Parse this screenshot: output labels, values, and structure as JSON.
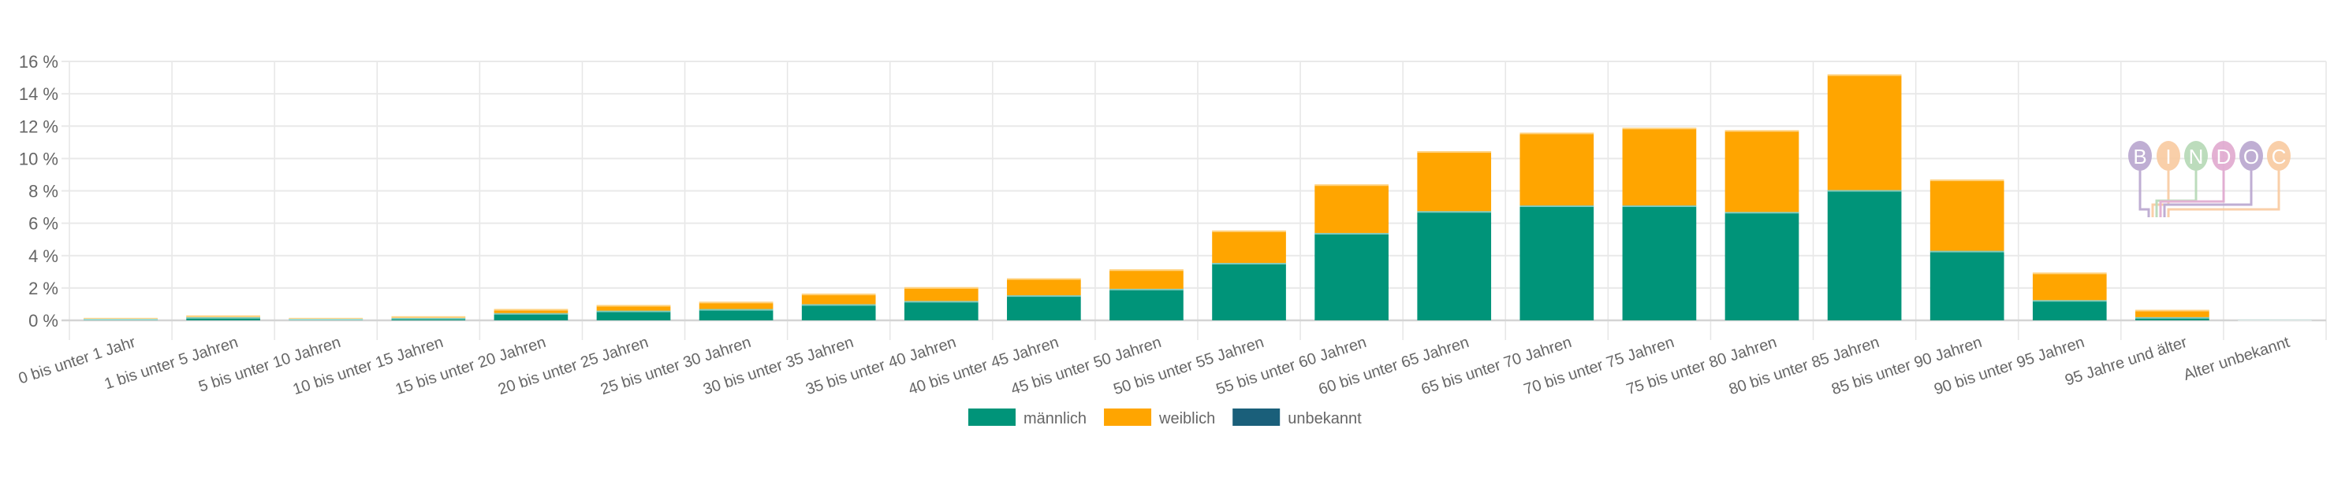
{
  "chart_data": {
    "type": "bar",
    "stacked": true,
    "title": "",
    "xlabel": "",
    "ylabel": "",
    "ylim": [
      0,
      16
    ],
    "y_ticks": [
      "0 %",
      "2 %",
      "4 %",
      "6 %",
      "8 %",
      "10 %",
      "12 %",
      "14 %",
      "16 %"
    ],
    "grid": true,
    "legend_position": "bottom",
    "categories": [
      "0 bis unter 1 Jahr",
      "1 bis unter 5 Jahren",
      "5 bis unter 10 Jahren",
      "10 bis unter 15 Jahren",
      "15 bis unter 20 Jahren",
      "20 bis unter 25 Jahren",
      "25 bis unter 30 Jahren",
      "30 bis unter 35 Jahren",
      "35 bis unter 40 Jahren",
      "40 bis unter 45 Jahren",
      "45 bis unter 50 Jahren",
      "50 bis unter 55 Jahren",
      "55 bis unter 60 Jahren",
      "60 bis unter 65 Jahren",
      "65 bis unter 70 Jahren",
      "70 bis unter 75 Jahren",
      "75 bis unter 80 Jahren",
      "80 bis unter 85 Jahren",
      "85 bis unter 90 Jahren",
      "90 bis unter 95 Jahren",
      "95 Jahre und älter",
      "Alter unbekannt"
    ],
    "series": [
      {
        "name": "männlich",
        "color": "#009479",
        "values": [
          0.1,
          0.2,
          0.1,
          0.15,
          0.45,
          0.6,
          0.7,
          1.0,
          1.2,
          1.55,
          1.95,
          3.55,
          5.4,
          6.75,
          7.1,
          7.1,
          6.7,
          8.05,
          4.3,
          1.25,
          0.2,
          0.05
        ]
      },
      {
        "name": "weiblich",
        "color": "#ffa500",
        "values": [
          0.05,
          0.1,
          0.05,
          0.1,
          0.25,
          0.35,
          0.45,
          0.65,
          0.85,
          1.05,
          1.2,
          2.0,
          3.0,
          3.7,
          4.5,
          4.8,
          5.05,
          7.15,
          4.4,
          1.7,
          0.45,
          0.0
        ]
      },
      {
        "name": "unbekannt",
        "color": "#1a5f7a",
        "values": [
          0,
          0,
          0,
          0,
          0,
          0,
          0,
          0,
          0,
          0,
          0,
          0,
          0,
          0,
          0,
          0,
          0,
          0,
          0,
          0,
          0,
          0
        ]
      }
    ]
  },
  "logo": {
    "text": "BINDOC",
    "letters": [
      "B",
      "I",
      "N",
      "D",
      "O",
      "C"
    ],
    "colors": [
      "#b9a6cf",
      "#f9caa0",
      "#b5d9b5",
      "#e0a9cf",
      "#b9a6cf",
      "#f9caa0"
    ]
  }
}
